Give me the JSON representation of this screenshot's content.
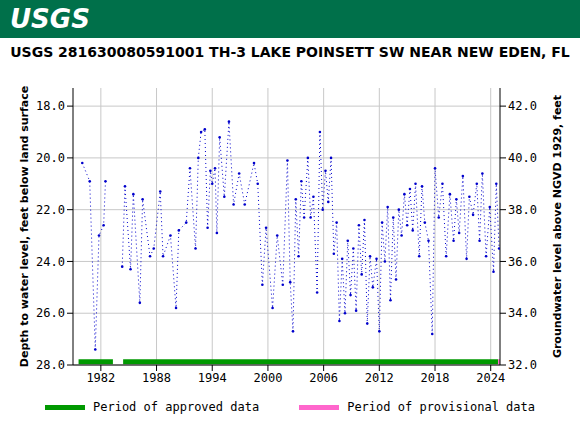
{
  "header": {
    "text": "USGS"
  },
  "chart_data": {
    "type": "line",
    "title": "USGS 281630080591001 TH-3 LAKE POINSETT SW NEAR NEW EDEN, FL",
    "y_label": "Depth to water level, feet below land surface",
    "y2_label": "Groundwater level above NGVD 1929, feet",
    "color": "#0000cc",
    "marker": "dot",
    "line_style": "dotted",
    "grid": true,
    "legend": "bottom",
    "xlim": [
      1979,
      2025
    ],
    "xticks": [
      1982,
      1988,
      1994,
      2000,
      2006,
      2012,
      2018,
      2024
    ],
    "ylim": [
      17.3,
      28
    ],
    "yticks": [
      {
        "value": 18,
        "label": "18.0"
      },
      {
        "value": 20,
        "label": "20.0"
      },
      {
        "value": 22,
        "label": "22.0"
      },
      {
        "value": 24,
        "label": "24.0"
      },
      {
        "value": 26,
        "label": "26.0"
      },
      {
        "value": 28,
        "label": "28.0"
      }
    ],
    "y2lim": [
      32,
      42.7
    ],
    "y2ticks": [
      {
        "value": 32,
        "label": "32.0"
      },
      {
        "value": 34,
        "label": "34.0"
      },
      {
        "value": 36,
        "label": "36.0"
      },
      {
        "value": 38,
        "label": "38.0"
      },
      {
        "value": 40,
        "label": "40.0"
      },
      {
        "value": 42,
        "label": "42.0"
      }
    ],
    "x": [
      1980.0,
      1980.8,
      1981.4,
      1981.8,
      1982.3,
      1982.5,
      1983.4,
      1984.3,
      1984.6,
      1985.2,
      1985.5,
      1986.2,
      1986.5,
      1987.3,
      1987.7,
      1988.4,
      1988.7,
      1989.5,
      1990.1,
      1990.4,
      1991.2,
      1991.6,
      1992.2,
      1992.5,
      1992.8,
      1993.2,
      1993.5,
      1993.8,
      1994.0,
      1994.3,
      1994.5,
      1994.8,
      1995.3,
      1995.8,
      1996.3,
      1996.9,
      1997.5,
      1998.5,
      1998.9,
      1999.4,
      1999.8,
      2000.5,
      2001.0,
      2001.6,
      2002.1,
      2002.4,
      2002.7,
      2003.0,
      2003.3,
      2003.6,
      2003.9,
      2004.3,
      2004.6,
      2004.9,
      2005.3,
      2005.6,
      2005.9,
      2006.2,
      2006.5,
      2006.8,
      2007.1,
      2007.4,
      2007.7,
      2008.0,
      2008.3,
      2008.6,
      2008.9,
      2009.2,
      2009.5,
      2009.8,
      2010.1,
      2010.4,
      2010.7,
      2011.0,
      2011.3,
      2011.7,
      2012.0,
      2012.3,
      2012.6,
      2012.9,
      2013.2,
      2013.5,
      2013.8,
      2014.1,
      2014.4,
      2014.7,
      2015.0,
      2015.3,
      2015.6,
      2015.9,
      2016.3,
      2016.6,
      2016.9,
      2017.3,
      2017.7,
      2018.0,
      2018.4,
      2018.8,
      2019.2,
      2019.6,
      2020.0,
      2020.3,
      2020.6,
      2021.0,
      2021.4,
      2021.7,
      2022.1,
      2022.5,
      2022.8,
      2023.1,
      2023.5,
      2023.9,
      2024.3,
      2024.6,
      2024.9
    ],
    "values": [
      20.2,
      20.9,
      27.4,
      23.0,
      22.6,
      20.9,
      null,
      24.2,
      21.1,
      24.3,
      21.4,
      25.6,
      21.6,
      23.8,
      23.5,
      21.3,
      23.8,
      23.0,
      25.8,
      22.8,
      22.5,
      20.4,
      23.5,
      20.0,
      19.0,
      18.9,
      22.7,
      20.5,
      21.0,
      20.4,
      22.9,
      19.2,
      21.5,
      18.6,
      21.8,
      20.6,
      21.8,
      20.2,
      21.0,
      24.9,
      22.7,
      25.8,
      23.0,
      24.9,
      20.1,
      24.8,
      26.7,
      21.6,
      23.8,
      20.9,
      22.3,
      20.0,
      22.3,
      21.5,
      25.2,
      19.0,
      22.0,
      20.5,
      21.7,
      20.0,
      23.7,
      22.5,
      26.3,
      23.9,
      26.0,
      23.2,
      25.3,
      23.5,
      25.9,
      22.6,
      24.5,
      22.4,
      26.4,
      23.8,
      25.0,
      23.9,
      26.7,
      22.5,
      24.0,
      21.9,
      25.5,
      22.3,
      24.7,
      22.0,
      23.0,
      21.4,
      22.6,
      21.2,
      22.8,
      21.0,
      23.8,
      21.1,
      22.5,
      23.2,
      26.8,
      20.4,
      22.3,
      21.0,
      23.8,
      21.4,
      23.2,
      21.6,
      22.9,
      20.7,
      23.9,
      21.5,
      22.2,
      21.0,
      23.2,
      20.6,
      23.8,
      21.9,
      24.4,
      21.0,
      23.5
    ],
    "periods": [
      {
        "name": "Period of approved data",
        "color": "#009900",
        "ranges": [
          [
            1979.6,
            1983.3
          ],
          [
            1984.4,
            2024.8
          ]
        ]
      },
      {
        "name": "Period of provisional data",
        "color": "#ff66cc",
        "ranges": [
          [
            2024.8,
            2025.0
          ]
        ]
      }
    ]
  }
}
